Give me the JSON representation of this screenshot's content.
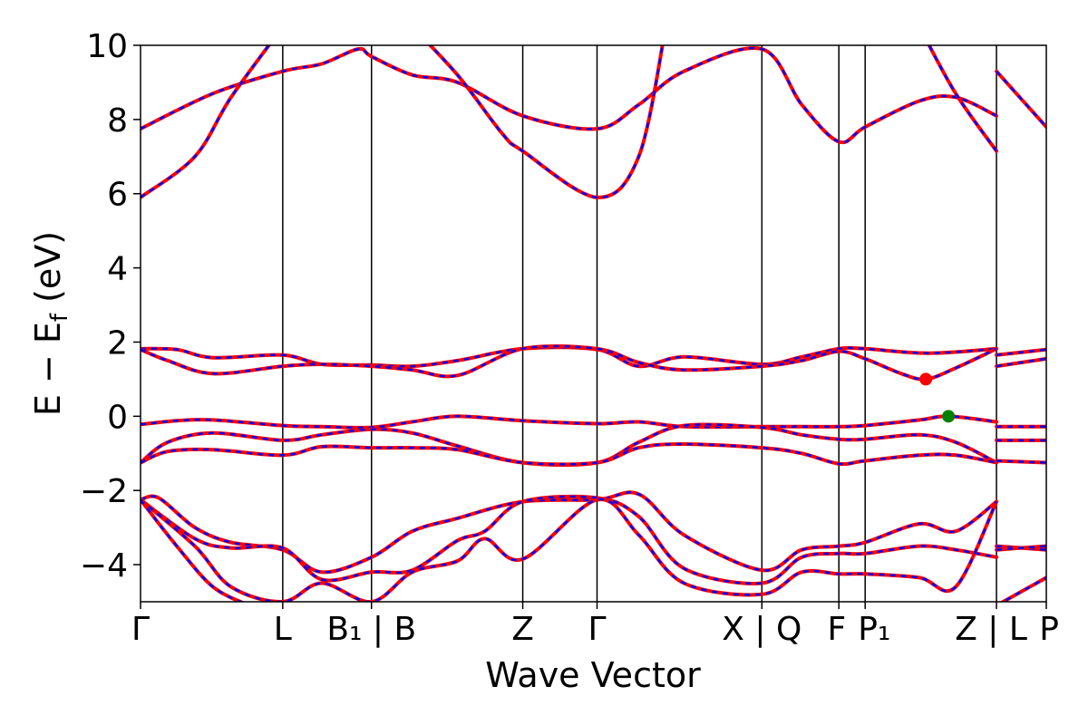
{
  "chart_data": {
    "type": "line",
    "title": "",
    "xlabel": "Wave Vector",
    "ylabel_parts": {
      "main": "E  −  E",
      "sub": "f",
      "tail": " (eV)"
    },
    "ylim": [
      -5,
      10
    ],
    "xlim": [
      0,
      1
    ],
    "grid": false,
    "legend": "none",
    "yticks": [
      {
        "value": 10,
        "label": "10"
      },
      {
        "value": 8,
        "label": "8"
      },
      {
        "value": 6,
        "label": "6"
      },
      {
        "value": 4,
        "label": "4"
      },
      {
        "value": 2,
        "label": "2"
      },
      {
        "value": 0,
        "label": "0"
      },
      {
        "value": -2,
        "label": "−2"
      },
      {
        "value": -4,
        "label": "−4"
      }
    ],
    "xticks": [
      {
        "value": 0.0,
        "label": "Γ"
      },
      {
        "value": 0.157,
        "label": "L"
      },
      {
        "value": 0.255,
        "label": "B₁ | B"
      },
      {
        "value": 0.422,
        "label": "Z"
      },
      {
        "value": 0.504,
        "label": "Γ"
      },
      {
        "value": 0.686,
        "label": "X | Q"
      },
      {
        "value": 0.771,
        "label": "F"
      },
      {
        "value": 0.8,
        "label": "P₁"
      },
      {
        "value": 0.945,
        "label": "Z | L"
      },
      {
        "value": 1.0,
        "label": "P"
      }
    ],
    "vlines": [
      0.157,
      0.255,
      0.422,
      0.504,
      0.686,
      0.771,
      0.8,
      0.945
    ],
    "colors": {
      "dft_line": "#ff0000",
      "wannier_line": "#0000ff",
      "cbm_marker": "#ff0000",
      "vbm_marker": "#008000"
    },
    "markers": [
      {
        "name": "CBM",
        "x": 0.867,
        "y": 1.0,
        "color": "#ff0000"
      },
      {
        "name": "VBM",
        "x": 0.892,
        "y": 0.0,
        "color": "#008000"
      }
    ],
    "series": [
      {
        "x": [
          0.0,
          0.08,
          0.157,
          0.2,
          0.24,
          0.255,
          0.3,
          0.35,
          0.422,
          0.504,
          0.55,
          0.6,
          0.686,
          0.73,
          0.771,
          0.8,
          0.86,
          0.9,
          0.945
        ],
        "y": [
          7.75,
          8.7,
          9.3,
          9.5,
          9.9,
          9.7,
          9.2,
          9.0,
          8.1,
          7.75,
          8.4,
          9.3,
          9.9,
          8.4,
          7.4,
          7.8,
          8.5,
          8.6,
          8.1
        ]
      },
      {
        "x": [
          0.0,
          0.06,
          0.1,
          0.157
        ],
        "y": [
          5.9,
          7.0,
          8.6,
          10.5
        ]
      },
      {
        "x": [
          0.3,
          0.35,
          0.4,
          0.422,
          0.504,
          0.55,
          0.58
        ],
        "y": [
          10.5,
          9.2,
          7.6,
          7.15,
          5.9,
          7.0,
          10.5
        ]
      },
      {
        "x": [
          0.86,
          0.9,
          0.945
        ],
        "y": [
          10.5,
          8.7,
          7.15
        ]
      },
      {
        "x": [
          0.945,
          1.0
        ],
        "y": [
          9.3,
          7.8
        ]
      },
      {
        "x": [
          0.0,
          0.04,
          0.08,
          0.157,
          0.2,
          0.255,
          0.3,
          0.35,
          0.422,
          0.504,
          0.55,
          0.6,
          0.686,
          0.73,
          0.771,
          0.8,
          0.87,
          0.945
        ],
        "y": [
          1.82,
          1.8,
          1.58,
          1.65,
          1.4,
          1.38,
          1.35,
          1.5,
          1.82,
          1.8,
          1.35,
          1.6,
          1.4,
          1.6,
          1.82,
          1.82,
          1.7,
          1.82
        ]
      },
      {
        "x": [
          0.0,
          0.03,
          0.08,
          0.157,
          0.2,
          0.255,
          0.3,
          0.35,
          0.422,
          0.504,
          0.55,
          0.6,
          0.686,
          0.73,
          0.771,
          0.8,
          0.84,
          0.867,
          0.9,
          0.945
        ],
        "y": [
          1.8,
          1.5,
          1.15,
          1.35,
          1.4,
          1.35,
          1.25,
          1.1,
          1.82,
          1.82,
          1.45,
          1.25,
          1.35,
          1.5,
          1.75,
          1.55,
          1.15,
          1.0,
          1.3,
          1.82
        ]
      },
      {
        "x": [
          0.945,
          1.0
        ],
        "y": [
          1.65,
          1.8
        ]
      },
      {
        "x": [
          0.945,
          1.0
        ],
        "y": [
          1.35,
          1.55
        ]
      },
      {
        "x": [
          0.0,
          0.04,
          0.08,
          0.157,
          0.2,
          0.255,
          0.3,
          0.35,
          0.422,
          0.504,
          0.55,
          0.6,
          0.686,
          0.73,
          0.771,
          0.8,
          0.86,
          0.892,
          0.945
        ],
        "y": [
          -0.22,
          -0.12,
          -0.1,
          -0.25,
          -0.28,
          -0.3,
          -0.15,
          0.0,
          -0.12,
          -0.2,
          -0.15,
          -0.28,
          -0.28,
          -0.28,
          -0.28,
          -0.25,
          -0.1,
          0.0,
          -0.15
        ]
      },
      {
        "x": [
          0.0,
          0.03,
          0.08,
          0.157,
          0.2,
          0.255,
          0.3,
          0.35,
          0.422,
          0.504,
          0.55,
          0.6,
          0.686,
          0.73,
          0.771,
          0.8,
          0.86,
          0.9,
          0.945
        ],
        "y": [
          -1.25,
          -0.7,
          -0.45,
          -0.65,
          -0.5,
          -0.35,
          -0.45,
          -0.8,
          -1.25,
          -1.25,
          -0.7,
          -0.25,
          -0.3,
          -0.5,
          -0.62,
          -0.62,
          -0.5,
          -0.7,
          -1.25
        ]
      },
      {
        "x": [
          0.0,
          0.03,
          0.08,
          0.157,
          0.2,
          0.255,
          0.3,
          0.35,
          0.422,
          0.504,
          0.55,
          0.6,
          0.686,
          0.73,
          0.771,
          0.8,
          0.86,
          0.9,
          0.945
        ],
        "y": [
          -1.25,
          -0.95,
          -0.9,
          -1.05,
          -0.82,
          -0.85,
          -0.85,
          -0.9,
          -1.25,
          -1.25,
          -0.85,
          -0.75,
          -0.85,
          -1.0,
          -1.28,
          -1.2,
          -1.05,
          -1.05,
          -1.25
        ]
      },
      {
        "x": [
          0.945,
          1.0
        ],
        "y": [
          -0.28,
          -0.28
        ]
      },
      {
        "x": [
          0.945,
          1.0
        ],
        "y": [
          -0.65,
          -0.65
        ]
      },
      {
        "x": [
          0.945,
          1.0
        ],
        "y": [
          -1.2,
          -1.25
        ]
      },
      {
        "x": [
          0.0,
          0.02,
          0.06,
          0.1,
          0.157,
          0.2,
          0.255,
          0.3,
          0.35,
          0.422,
          0.504,
          0.55,
          0.6,
          0.686,
          0.73,
          0.771,
          0.8,
          0.86,
          0.9,
          0.945
        ],
        "y": [
          -2.25,
          -2.2,
          -3.0,
          -3.4,
          -3.6,
          -4.2,
          -3.8,
          -3.1,
          -2.75,
          -2.3,
          -2.25,
          -2.1,
          -3.2,
          -4.15,
          -3.6,
          -3.5,
          -3.4,
          -2.9,
          -3.1,
          -2.3
        ]
      },
      {
        "x": [
          0.0,
          0.06,
          0.1,
          0.157,
          0.2,
          0.255,
          0.3,
          0.35,
          0.38,
          0.422,
          0.504,
          0.55,
          0.6,
          0.686,
          0.73,
          0.771,
          0.8,
          0.86,
          0.9,
          0.945
        ],
        "y": [
          -2.25,
          -3.3,
          -3.55,
          -3.55,
          -4.4,
          -4.2,
          -4.15,
          -3.35,
          -3.1,
          -2.3,
          -2.2,
          -2.7,
          -4.1,
          -4.5,
          -3.8,
          -3.7,
          -3.7,
          -3.5,
          -3.6,
          -3.8
        ]
      },
      {
        "x": [
          0.0,
          0.06,
          0.1,
          0.157,
          0.2,
          0.255,
          0.3,
          0.35,
          0.38,
          0.422,
          0.504,
          0.55,
          0.6,
          0.686,
          0.73,
          0.771,
          0.8,
          0.86,
          0.9,
          0.945
        ],
        "y": [
          -2.25,
          -3.5,
          -4.6,
          -5.0,
          -4.5,
          -5.0,
          -4.2,
          -3.9,
          -3.3,
          -3.85,
          -2.25,
          -3.2,
          -4.5,
          -4.8,
          -4.2,
          -4.25,
          -4.25,
          -4.35,
          -4.6,
          -2.3
        ]
      },
      {
        "x": [
          0.0,
          0.04,
          0.08,
          0.12
        ],
        "y": [
          -2.25,
          -3.5,
          -4.6,
          -5.1
        ]
      },
      {
        "x": [
          0.945,
          1.0
        ],
        "y": [
          -3.5,
          -3.6
        ]
      },
      {
        "x": [
          0.945,
          1.0
        ],
        "y": [
          -3.6,
          -3.5
        ]
      },
      {
        "x": [
          0.945,
          1.0
        ],
        "y": [
          -5.1,
          -4.35
        ]
      }
    ]
  }
}
